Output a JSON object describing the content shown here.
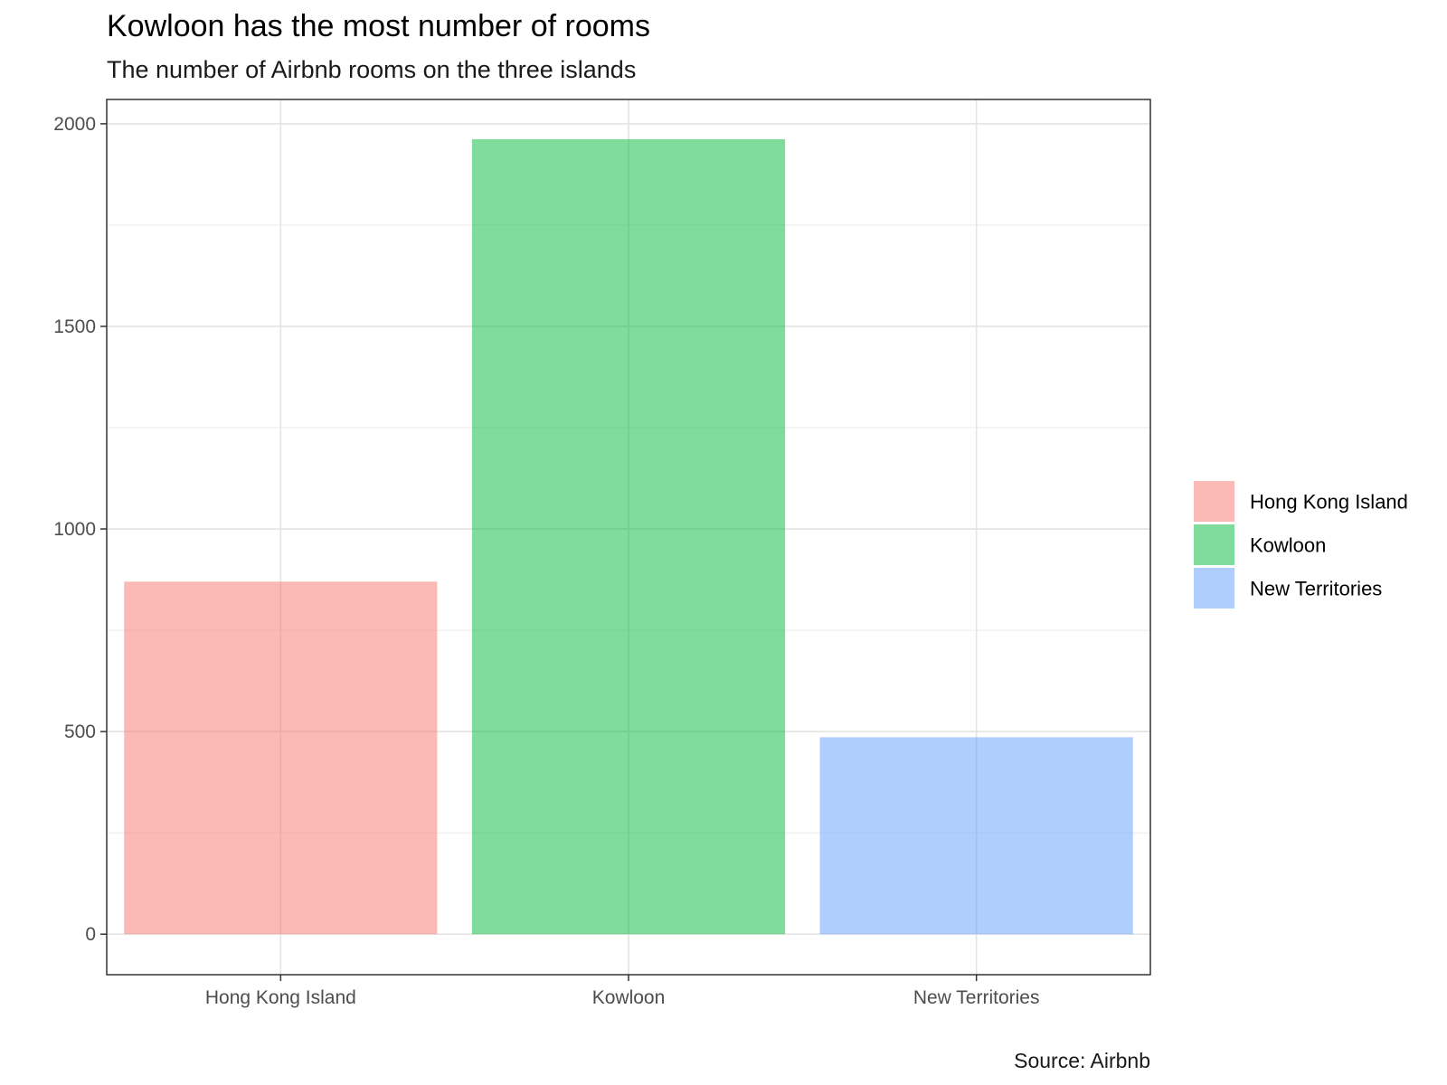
{
  "chart_data": {
    "type": "bar",
    "title": "Kowloon has the most number of rooms",
    "subtitle": "The number of Airbnb rooms on the three islands",
    "caption": "Source: Airbnb",
    "categories": [
      "Hong Kong Island",
      "Kowloon",
      "New Territories"
    ],
    "values": [
      870,
      1962,
      486
    ],
    "colors": [
      "#F8766D",
      "#00BA38",
      "#619CFF"
    ],
    "bar_opacity": 0.5,
    "ylim": [
      -100,
      2060
    ],
    "yticks": [
      0,
      500,
      1000,
      1500,
      2000
    ],
    "xlabel": "",
    "ylabel": "",
    "grid": true,
    "legend": {
      "position": "right",
      "entries": [
        "Hong Kong Island",
        "Kowloon",
        "New Territories"
      ]
    }
  }
}
